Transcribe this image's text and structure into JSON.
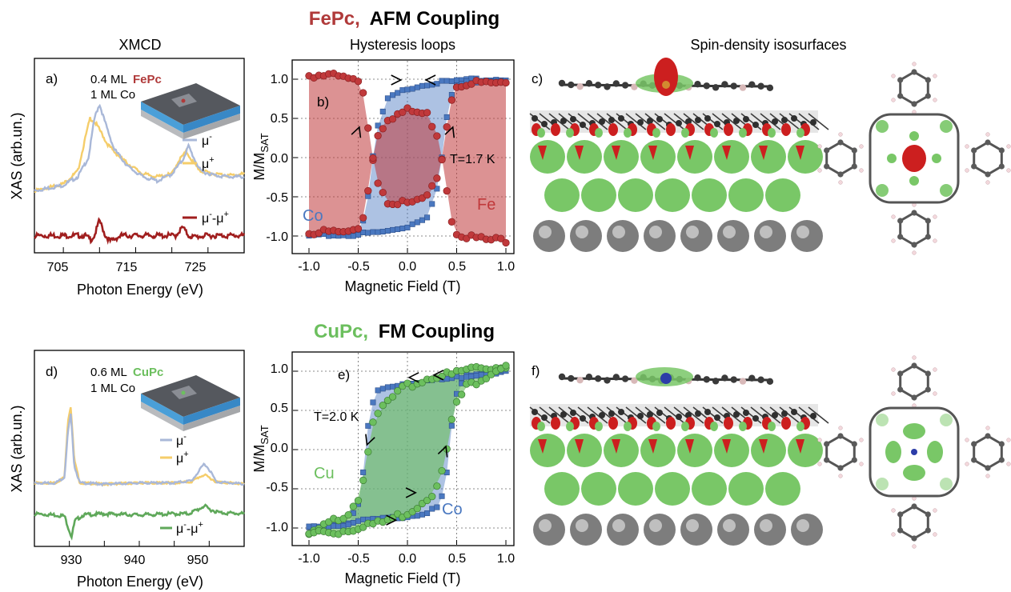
{
  "row1": {
    "title_mol": "FePc,",
    "title_coupling": "AFM Coupling",
    "mol_color": "#b03a3a",
    "col_xmcd": "XMCD",
    "col_hyst": "Hysteresis loops",
    "col_spin": "Spin-density isosurfaces"
  },
  "row2": {
    "title_mol": "CuPc,",
    "title_coupling": "FM Coupling",
    "mol_color": "#6cbf5e"
  },
  "panels": {
    "a": {
      "label": "a)",
      "ylabel": "XAS (arb.un.)",
      "xlabel": "Photon Energy (eV)",
      "xticks": [
        "705",
        "715",
        "725"
      ],
      "cov_ml": "0.4 ML",
      "cov_mol": "FePc",
      "substrate": "1 ML Co",
      "leg_minus": "μ",
      "leg_minus_sup": "-",
      "leg_plus": "μ",
      "leg_plus_sup": "+",
      "leg_diff": "μ",
      "leg_diff_mid": "-",
      "leg_diff_mu2": "-μ",
      "leg_diff_sup2": "+"
    },
    "b": {
      "label": "b)",
      "ylabel_main": "M/M",
      "ylabel_sub": "SAT",
      "xlabel": "Magnetic Field (T)",
      "xticks": [
        "-1.0",
        "-0.5",
        "0.0",
        "0.5",
        "1.0"
      ],
      "yticks": [
        "1.0",
        "0.5",
        "0.0",
        "-0.5",
        "-1.0"
      ],
      "temp": "T=1.7 K",
      "lbl_co": "Co",
      "lbl_fe": "Fe"
    },
    "c": {
      "label": "c)"
    },
    "d": {
      "label": "d)",
      "ylabel": "XAS (arb.un.)",
      "xlabel": "Photon Energy (eV)",
      "xticks": [
        "930",
        "940",
        "950"
      ],
      "cov_ml": "0.6 ML",
      "cov_mol": "CuPc",
      "substrate": "1 ML Co",
      "leg_minus": "μ",
      "leg_minus_sup": "-",
      "leg_plus": "μ",
      "leg_plus_sup": "+",
      "leg_diff": "μ",
      "leg_diff_mid": "-",
      "leg_diff_mu2": "-μ",
      "leg_diff_sup2": "+"
    },
    "e": {
      "label": "e)",
      "ylabel_main": "M/M",
      "ylabel_sub": "SAT",
      "xlabel": "Magnetic Field (T)",
      "xticks": [
        "-1.0",
        "-0.5",
        "0.0",
        "0.5",
        "1.0"
      ],
      "yticks": [
        "1.0",
        "0.5",
        "0.0",
        "-0.5",
        "-1.0"
      ],
      "temp": "T=2.0 K",
      "lbl_cu": "Cu",
      "lbl_co": "Co"
    },
    "f": {
      "label": "f)"
    }
  },
  "colors": {
    "mu_minus": "#a9b8d8",
    "mu_plus": "#f5cd6a",
    "diff_fe": "#a01e1e",
    "diff_cu": "#5fa85a",
    "co": "#4a78c0",
    "fe": "#c0393b",
    "cu": "#6cbf5e",
    "spin_green": "#79c767",
    "spin_red": "#cc1f1f"
  },
  "chart_data": [
    {
      "panel": "a",
      "type": "line",
      "xlabel": "Photon Energy (eV)",
      "ylabel": "XAS (arb.un.)",
      "xlim": [
        701,
        730
      ],
      "series": [
        {
          "name": "μ-",
          "x": [
            701,
            705,
            707,
            708.5,
            709.3,
            710,
            710.7,
            712,
            714,
            716,
            718,
            720,
            721.5,
            722.3,
            723,
            724,
            726,
            728,
            730
          ],
          "y": [
            0.38,
            0.42,
            0.48,
            0.62,
            0.9,
            1.0,
            0.88,
            0.68,
            0.55,
            0.48,
            0.45,
            0.5,
            0.6,
            0.7,
            0.62,
            0.52,
            0.49,
            0.48,
            0.48
          ]
        },
        {
          "name": "μ+",
          "x": [
            701,
            705,
            707,
            708,
            708.7,
            709.5,
            710.2,
            711,
            712,
            714,
            716,
            718,
            720,
            721,
            722,
            723,
            724,
            726,
            728,
            730
          ],
          "y": [
            0.38,
            0.43,
            0.52,
            0.75,
            0.9,
            0.86,
            0.8,
            0.72,
            0.66,
            0.57,
            0.5,
            0.48,
            0.5,
            0.6,
            0.66,
            0.58,
            0.52,
            0.5,
            0.49,
            0.5
          ]
        },
        {
          "name": "μ--μ+",
          "x": [
            701,
            706,
            708,
            708.8,
            709.3,
            710,
            710.8,
            711.5,
            713,
            716,
            719,
            720.5,
            721.5,
            722.3,
            723,
            725,
            730
          ],
          "y": [
            0.06,
            0.06,
            0.06,
            0.03,
            0.06,
            0.17,
            0.06,
            0.02,
            0.06,
            0.06,
            0.06,
            0.06,
            0.12,
            0.06,
            0.05,
            0.06,
            0.06
          ]
        }
      ]
    },
    {
      "panel": "b",
      "type": "line",
      "xlabel": "Magnetic Field (T)",
      "ylabel": "M/MSAT",
      "xlim": [
        -1.05,
        1.05
      ],
      "ylim": [
        -1.2,
        1.2
      ],
      "series": [
        {
          "name": "Co",
          "x": [
            -1.0,
            -0.8,
            -0.6,
            -0.5,
            -0.45,
            -0.4,
            -0.35,
            -0.3,
            -0.2,
            0.0,
            0.2,
            0.35,
            0.45,
            0.5,
            0.6,
            0.8,
            1.0
          ],
          "y": [
            -1.0,
            -0.98,
            -0.96,
            -0.92,
            -0.8,
            -0.5,
            0.0,
            0.4,
            0.75,
            0.88,
            0.94,
            0.96,
            0.97,
            0.98,
            0.99,
            0.99,
            1.0
          ]
        },
        {
          "name": "Fe",
          "x": [
            -1.0,
            -0.8,
            -0.6,
            -0.5,
            -0.45,
            -0.4,
            -0.35,
            -0.3,
            -0.2,
            0.0,
            0.2,
            0.3,
            0.35,
            0.4,
            0.45,
            0.5,
            0.6,
            0.8,
            1.0
          ],
          "y": [
            1.05,
            1.05,
            1.0,
            0.95,
            0.8,
            0.4,
            0.0,
            -0.3,
            -0.55,
            -0.6,
            -0.5,
            -0.3,
            0.0,
            0.4,
            0.75,
            0.9,
            0.95,
            0.95,
            0.95
          ]
        }
      ]
    },
    {
      "panel": "d",
      "type": "line",
      "xlabel": "Photon Energy (eV)",
      "ylabel": "XAS (arb.un.)",
      "xlim": [
        925,
        955
      ],
      "series": [
        {
          "name": "μ-",
          "x": [
            925,
            928,
            929.3,
            929.8,
            930.2,
            930.7,
            931.5,
            935,
            940,
            945,
            947.5,
            948.5,
            949.3,
            950.2,
            951,
            953,
            955
          ],
          "y": [
            0.45,
            0.45,
            0.5,
            0.9,
            1.05,
            0.6,
            0.45,
            0.44,
            0.45,
            0.45,
            0.47,
            0.55,
            0.62,
            0.55,
            0.46,
            0.45,
            0.44
          ]
        },
        {
          "name": "μ+",
          "x": [
            925,
            928,
            929.3,
            929.8,
            930.2,
            930.7,
            931.5,
            935,
            940,
            945,
            947.5,
            948.5,
            949.3,
            950.2,
            951,
            953,
            955
          ],
          "y": [
            0.45,
            0.45,
            0.5,
            1.0,
            1.12,
            0.65,
            0.45,
            0.44,
            0.45,
            0.45,
            0.46,
            0.5,
            0.52,
            0.49,
            0.46,
            0.45,
            0.44
          ]
        },
        {
          "name": "μ--μ+",
          "x": [
            925,
            928,
            929.3,
            929.9,
            930.3,
            930.8,
            932,
            935,
            940,
            945,
            947,
            948.5,
            949.3,
            950,
            951.5,
            955
          ],
          "y": [
            0.18,
            0.17,
            0.16,
            0.05,
            -0.02,
            0.12,
            0.17,
            0.18,
            0.17,
            0.18,
            0.18,
            0.22,
            0.25,
            0.22,
            0.19,
            0.18
          ]
        }
      ]
    },
    {
      "panel": "e",
      "type": "line",
      "xlabel": "Magnetic Field (T)",
      "ylabel": "M/MSAT",
      "xlim": [
        -1.05,
        1.05
      ],
      "ylim": [
        -1.2,
        1.2
      ],
      "series": [
        {
          "name": "Co",
          "x": [
            -1.0,
            -0.8,
            -0.6,
            -0.4,
            -0.2,
            0.0,
            0.2,
            0.3,
            0.35,
            0.4,
            0.45,
            0.5,
            0.6,
            0.8,
            1.0
          ],
          "y": [
            -1.0,
            -0.97,
            -0.94,
            -0.9,
            -0.88,
            -0.85,
            -0.8,
            -0.75,
            -0.6,
            -0.3,
            0.3,
            0.7,
            0.95,
            0.98,
            1.0
          ]
        },
        {
          "name": "Cu",
          "x": [
            -1.0,
            -0.8,
            -0.6,
            -0.5,
            -0.45,
            -0.4,
            -0.35,
            -0.25,
            -0.1,
            0.0,
            0.2,
            0.3,
            0.4,
            0.45,
            0.5,
            0.6,
            0.7,
            0.8,
            0.9,
            1.0
          ],
          "y": [
            -1.1,
            -0.95,
            -0.8,
            -0.6,
            -0.35,
            0.0,
            0.3,
            0.55,
            0.72,
            0.8,
            0.9,
            0.95,
            0.95,
            0.95,
            0.98,
            1.02,
            1.05,
            1.05,
            1.05,
            1.08
          ]
        }
      ]
    }
  ]
}
